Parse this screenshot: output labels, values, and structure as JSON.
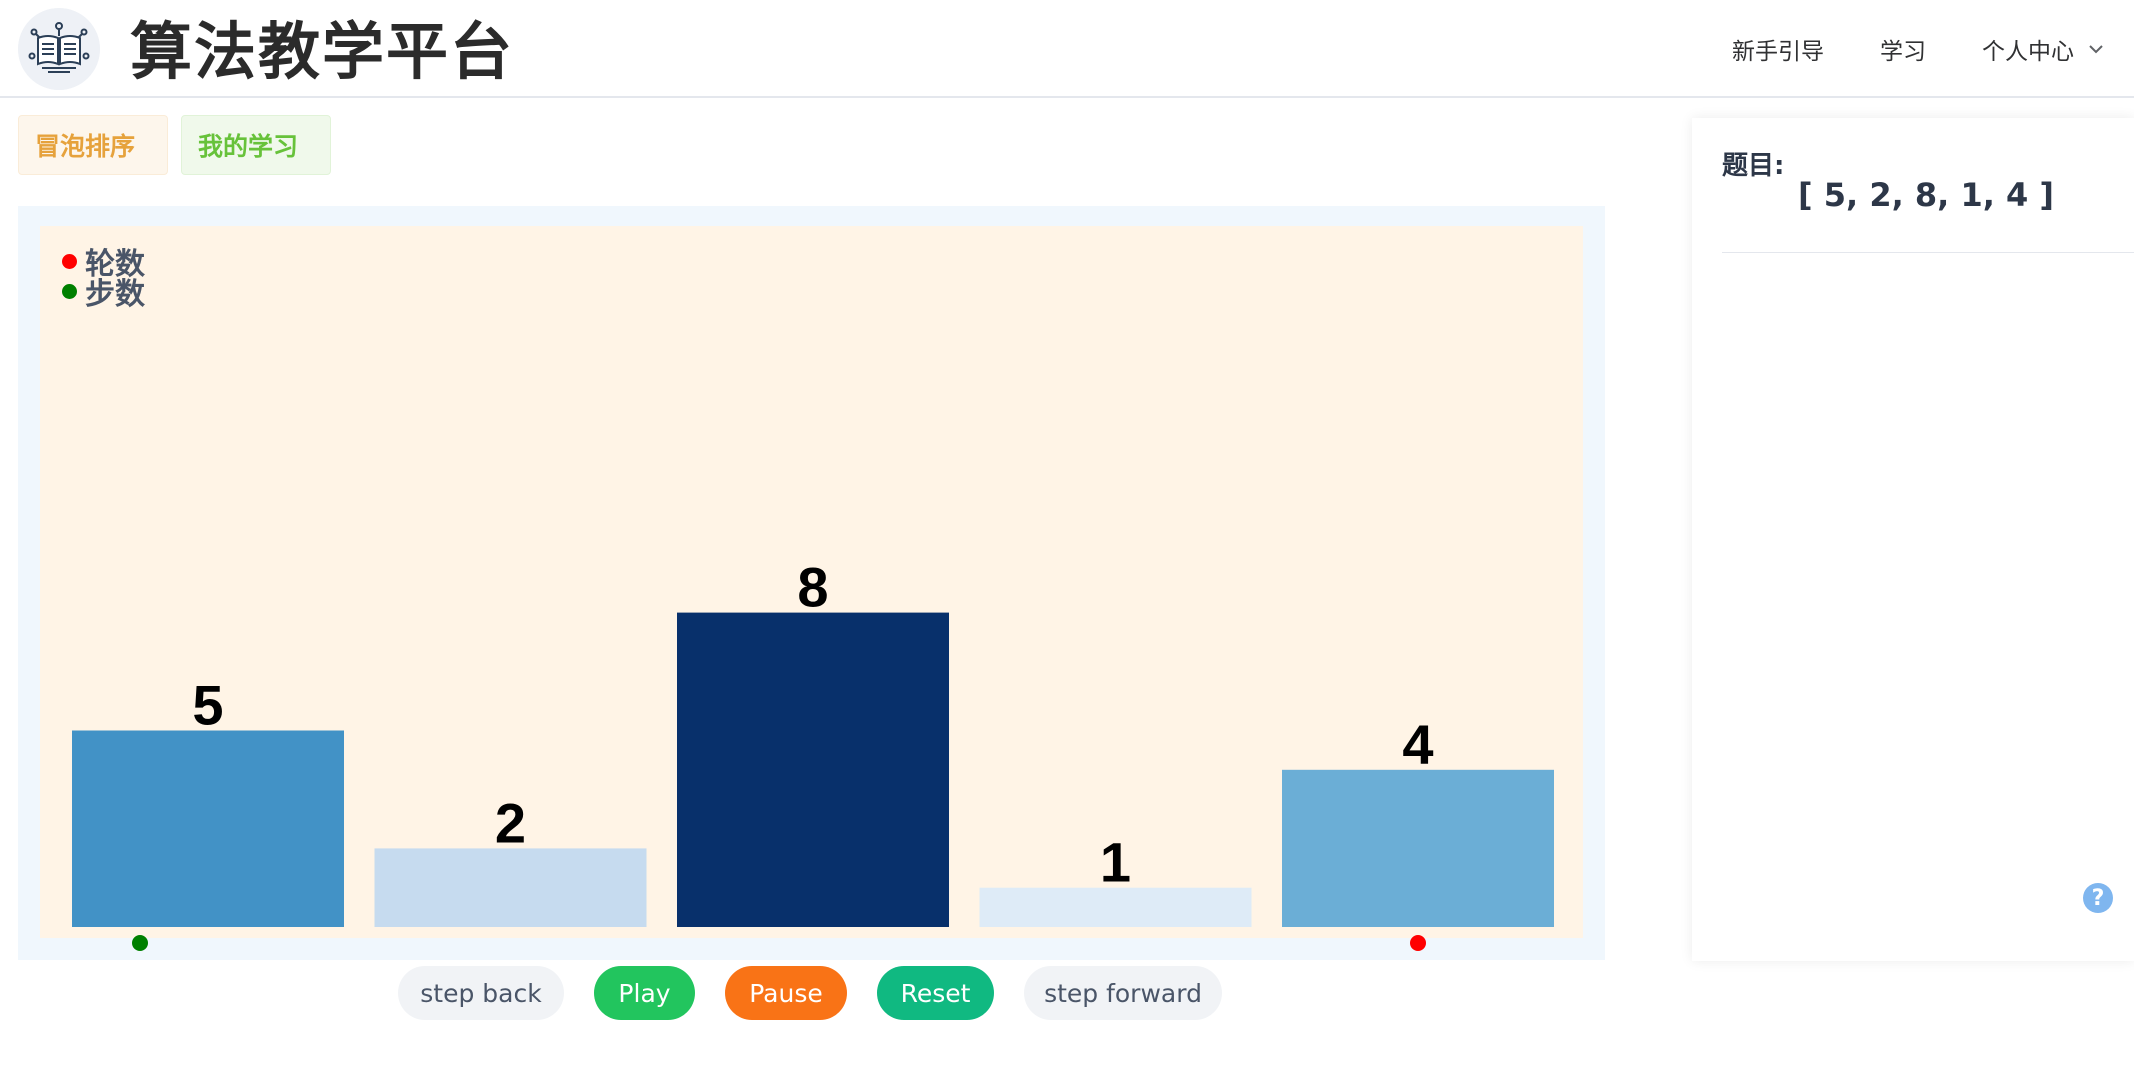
{
  "header": {
    "title": "算法教学平台",
    "nav": {
      "guide": "新手引导",
      "learn": "学习",
      "profile": "个人中心"
    }
  },
  "tags": {
    "algorithm": "冒泡排序",
    "my_learning": "我的学习"
  },
  "legend": {
    "round": {
      "label": "轮数",
      "color": "#ff0000"
    },
    "step": {
      "label": "步数",
      "color": "#008000"
    }
  },
  "chart_data": {
    "type": "bar",
    "values": [
      5,
      2,
      8,
      1,
      4
    ],
    "colors": [
      "#4292c6",
      "#c6dbef",
      "#08306b",
      "#deebf7",
      "#6baed6"
    ],
    "ylim": [
      0,
      10
    ],
    "markers": {
      "step_index": 0,
      "round_index": 4
    },
    "legend": [
      "轮数",
      "步数"
    ],
    "legend_position": "top-left",
    "grid": false
  },
  "controls": {
    "step_back": "step back",
    "play": "Play",
    "pause": "Pause",
    "reset": "Reset",
    "step_forward": "step forward"
  },
  "panel": {
    "label": "题目:",
    "array_text": "[ 5, 2, 8, 1, 4 ]",
    "help": "?"
  },
  "icons": {
    "logo": "book-logo-icon",
    "dropdown": "chevron-down-icon",
    "help": "question-mark-icon"
  }
}
